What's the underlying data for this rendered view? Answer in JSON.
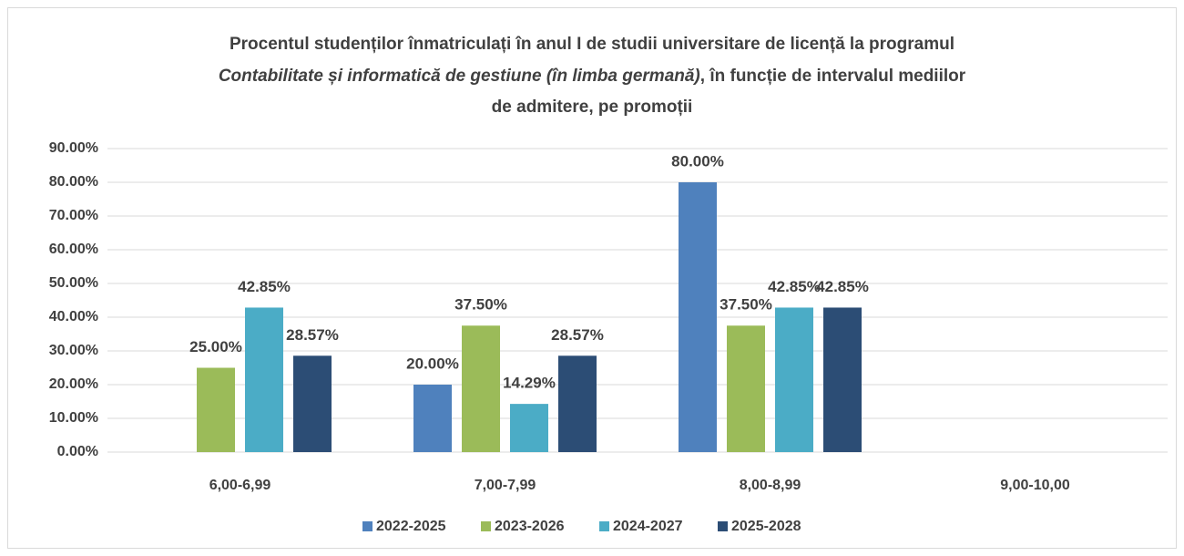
{
  "chart_data": {
    "type": "bar",
    "title": [
      "Procentul studenților înmatriculați în anul I de studii universitare de licență la programul",
      "Contabilitate și informatică de gestiune (în limba germană)",
      ", în funcție de intervalul mediilor",
      "de admitere, pe promoții"
    ],
    "categories": [
      "6,00-6,99",
      "7,00-7,99",
      "8,00-8,99",
      "9,00-10,00"
    ],
    "series": [
      {
        "name": "2022-2025",
        "color": "#4f81bd",
        "values": [
          null,
          20,
          80,
          null
        ],
        "value_labels": [
          null,
          "20.00%",
          "80.00%",
          null
        ]
      },
      {
        "name": "2023-2026",
        "color": "#9bbb59",
        "values": [
          25,
          37.5,
          37.5,
          null
        ],
        "value_labels": [
          "25.00%",
          "37.50%",
          "37.50%",
          null
        ]
      },
      {
        "name": "2024-2027",
        "color": "#4bacc6",
        "values": [
          42.85,
          14.29,
          42.85,
          null
        ],
        "value_labels": [
          "42.85%",
          "14.29%",
          "42.85%",
          null
        ]
      },
      {
        "name": "2025-2028",
        "color": "#2c4d75",
        "values": [
          28.57,
          28.57,
          42.85,
          null
        ],
        "value_labels": [
          "28.57%",
          "28.57%",
          "42.85%",
          null
        ]
      }
    ],
    "ylim": [
      0,
      90
    ],
    "yticks": [
      {
        "value": 0,
        "label": "0.00%"
      },
      {
        "value": 10,
        "label": "10.00%"
      },
      {
        "value": 20,
        "label": "20.00%"
      },
      {
        "value": 30,
        "label": "30.00%"
      },
      {
        "value": 40,
        "label": "40.00%"
      },
      {
        "value": 50,
        "label": "50.00%"
      },
      {
        "value": 60,
        "label": "60.00%"
      },
      {
        "value": 70,
        "label": "70.00%"
      },
      {
        "value": 80,
        "label": "80.00%"
      },
      {
        "value": 90,
        "label": "90.00%"
      }
    ],
    "grid": true,
    "legend": "bottom"
  }
}
